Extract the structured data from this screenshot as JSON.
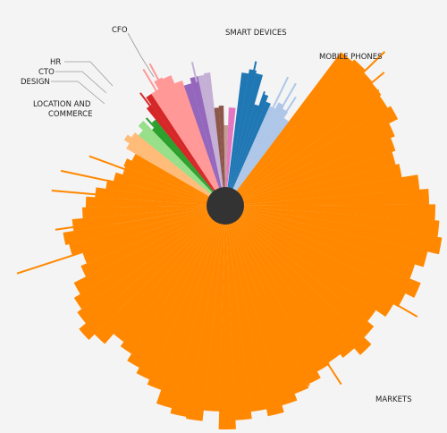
{
  "chart_data": {
    "type": "sunburst",
    "title": "",
    "colors": {
      "hub": "#333333",
      "background": "#f4f4f4",
      "leader_line": "#9a9a9a"
    },
    "segments": [
      {
        "label": "MARKETS",
        "color": "#ff8800",
        "start_deg": 37,
        "end_deg": 300,
        "radii": [
          215,
          218,
          215,
          214,
          212,
          216,
          205,
          200,
          196,
          200,
          218,
          228,
          235,
          240,
          245,
          232,
          222,
          235,
          224,
          218,
          205,
          214,
          225,
          215,
          210,
          212,
          220,
          224,
          232,
          240,
          232,
          240,
          250,
          230,
          242,
          240,
          234,
          218,
          212,
          205,
          196,
          190,
          205,
          214,
          204,
          198,
          190,
          175,
          168,
          180,
          184,
          172,
          160,
          156,
          146,
          135,
          128,
          120,
          122,
          116
        ],
        "spikes": [
          {
            "deg": 46,
            "len": 248
          },
          {
            "deg": 50,
            "len": 232
          },
          {
            "deg": 53,
            "len": 215
          },
          {
            "deg": 58,
            "len": 205
          },
          {
            "deg": 63,
            "len": 212
          },
          {
            "deg": 120,
            "len": 248
          },
          {
            "deg": 147,
            "len": 238
          },
          {
            "deg": 155,
            "len": 222
          },
          {
            "deg": 160,
            "len": 205
          },
          {
            "deg": 252,
            "len": 245
          },
          {
            "deg": 262,
            "len": 192
          },
          {
            "deg": 275,
            "len": 195
          },
          {
            "deg": 282,
            "len": 188
          },
          {
            "deg": 290,
            "len": 162
          }
        ]
      },
      {
        "label": "LOCATION AND COMMERCE",
        "color": "#ffbb78",
        "start_deg": 300,
        "end_deg": 309,
        "radii": [
          128,
          135,
          130
        ],
        "spikes": []
      },
      {
        "label": "",
        "color": "#98df8a",
        "start_deg": 309,
        "end_deg": 316,
        "radii": [
          125,
          132
        ],
        "spikes": []
      },
      {
        "label": "",
        "color": "#2ca02c",
        "start_deg": 316,
        "end_deg": 321,
        "radii": [
          118,
          124
        ],
        "spikes": [
          {
            "deg": 318,
            "len": 132
          }
        ]
      },
      {
        "label": "DESIGN",
        "color": "#d62728",
        "start_deg": 321,
        "end_deg": 326.5,
        "radii": [
          140,
          150
        ],
        "spikes": [
          {
            "deg": 323,
            "len": 158
          }
        ]
      },
      {
        "label": "",
        "color": "#ff9896",
        "start_deg": 326.5,
        "end_deg": 341,
        "radii": [
          150,
          160,
          158,
          148
        ],
        "spikes": [
          {
            "deg": 329,
            "len": 178
          },
          {
            "deg": 332,
            "len": 180
          }
        ]
      },
      {
        "label": "",
        "color": "#9467bd",
        "start_deg": 341,
        "end_deg": 348,
        "radii": [
          142,
          148
        ],
        "spikes": []
      },
      {
        "label": "",
        "color": "#c5b0d5",
        "start_deg": 348,
        "end_deg": 353.5,
        "radii": [
          148,
          150
        ],
        "spikes": [
          {
            "deg": 347,
            "len": 165
          }
        ]
      },
      {
        "label": "",
        "color": "#8c564b",
        "start_deg": 353.5,
        "end_deg": 359,
        "radii": [
          110,
          112
        ],
        "spikes": []
      },
      {
        "label": "",
        "color": "#c49c94",
        "start_deg": 359,
        "end_deg": 362,
        "radii": [
          90
        ],
        "spikes": []
      },
      {
        "label": "",
        "color": "#e377c2",
        "start_deg": 362,
        "end_deg": 366,
        "radii": [
          110
        ],
        "spikes": []
      },
      {
        "label": "SMART DEVICES",
        "color": "#1f77b4",
        "start_deg": 367,
        "end_deg": 376,
        "radii": [
          150,
          155,
          152
        ],
        "spikes": [
          {
            "deg": 372,
            "len": 165
          }
        ]
      },
      {
        "label": "",
        "color": "#1f77b4",
        "start_deg": 376,
        "end_deg": 384,
        "radii": [
          118,
          132,
          125
        ],
        "spikes": [
          {
            "deg": 379,
            "len": 135
          }
        ]
      },
      {
        "label": "MOBILE PHONES",
        "color": "#aec7e8",
        "start_deg": 384,
        "end_deg": 397,
        "radii": [
          122,
          130,
          126,
          118
        ],
        "spikes": [
          {
            "deg": 386,
            "len": 160
          },
          {
            "deg": 390,
            "len": 158
          },
          {
            "deg": 393,
            "len": 145
          }
        ]
      }
    ],
    "labels": [
      {
        "text": "CFO",
        "deg": 332,
        "r": 165
      },
      {
        "text": "SMART DEVICES",
        "deg": 372,
        "r": 163
      },
      {
        "text": "MOBILE PHONES",
        "deg": 390,
        "r": 145
      },
      {
        "text": "HR",
        "deg": 323,
        "r": 150
      },
      {
        "text": "CTO",
        "deg": 323,
        "r": 148
      },
      {
        "text": "DESIGN",
        "deg": 323,
        "r": 147
      },
      {
        "text": "LOCATION AND COMMERCE",
        "deg": 303,
        "r": 120
      },
      {
        "text": "MARKETS",
        "deg": 147,
        "r": 225
      }
    ]
  }
}
